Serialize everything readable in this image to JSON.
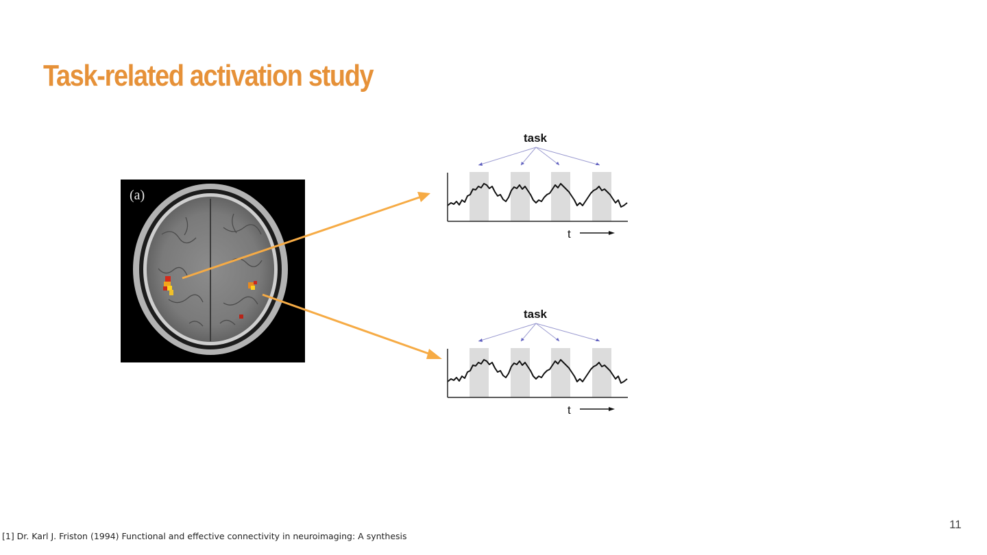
{
  "slide": {
    "title": "Task-related activation study",
    "footnote": "[1] Dr. Karl J. Friston (1994) Functional and effective connectivity in neuroimaging: A synthesis",
    "page_number": "11"
  },
  "brain_image": {
    "panel_label": "(a)"
  },
  "figures": [
    {
      "task_label": "task",
      "time_label": "t"
    },
    {
      "task_label": "task",
      "time_label": "t"
    }
  ],
  "colors": {
    "title": "#e69138",
    "arrow": "#f6ab45",
    "task_block": "#dcdcdc",
    "task_pointer": "#7070c8"
  }
}
